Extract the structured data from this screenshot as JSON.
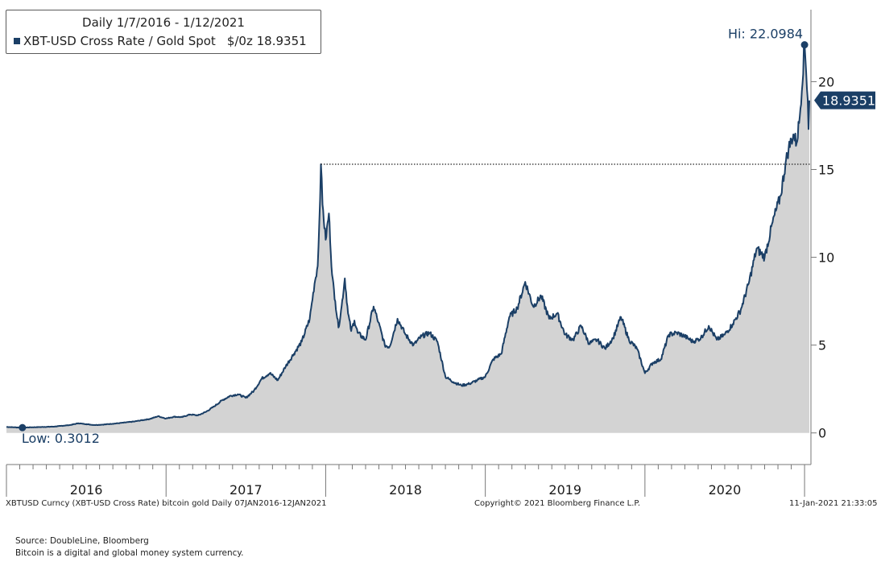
{
  "legend": {
    "title": "Daily 1/7/2016 - 1/12/2021",
    "series_label": "XBT-USD Cross Rate / Gold Spot",
    "unit_label": "$/0z",
    "last_value": "18.9351"
  },
  "colors": {
    "line": "#1b3f66",
    "fill": "#d3d3d3",
    "axis": "#777777",
    "label_bg": "#1b3f66",
    "label_text": "#ffffff"
  },
  "chart_data": {
    "type": "area",
    "title": "XBT-USD Cross Rate / Gold Spot",
    "ylabel": "$/0z",
    "xlabel": "",
    "xlim": [
      2016.0,
      2021.04
    ],
    "ylim": [
      -1.8,
      24.1
    ],
    "y_ticks": [
      0,
      5,
      10,
      15,
      20
    ],
    "y_tick_labels": [
      "0",
      "5",
      "10",
      "15",
      "20"
    ],
    "x_year_labels": [
      "2016",
      "2017",
      "2018",
      "2019",
      "2020"
    ],
    "x": [
      2016.0,
      2016.05,
      2016.1,
      2016.15,
      2016.2,
      2016.3,
      2016.4,
      2016.45,
      2016.5,
      2016.55,
      2016.6,
      2016.7,
      2016.8,
      2016.9,
      2016.95,
      2017.0,
      2017.05,
      2017.1,
      2017.15,
      2017.2,
      2017.25,
      2017.3,
      2017.35,
      2017.4,
      2017.45,
      2017.5,
      2017.55,
      2017.6,
      2017.65,
      2017.7,
      2017.75,
      2017.8,
      2017.85,
      2017.9,
      2017.93,
      2017.95,
      2017.96,
      2017.97,
      2017.98,
      2018.0,
      2018.02,
      2018.04,
      2018.06,
      2018.08,
      2018.1,
      2018.12,
      2018.14,
      2018.16,
      2018.18,
      2018.2,
      2018.25,
      2018.3,
      2018.33,
      2018.37,
      2018.4,
      2018.45,
      2018.5,
      2018.55,
      2018.6,
      2018.65,
      2018.7,
      2018.75,
      2018.8,
      2018.85,
      2018.9,
      2018.95,
      2019.0,
      2019.05,
      2019.1,
      2019.15,
      2019.2,
      2019.25,
      2019.3,
      2019.35,
      2019.4,
      2019.45,
      2019.5,
      2019.55,
      2019.6,
      2019.65,
      2019.7,
      2019.75,
      2019.8,
      2019.85,
      2019.9,
      2019.95,
      2020.0,
      2020.05,
      2020.1,
      2020.15,
      2020.2,
      2020.25,
      2020.3,
      2020.35,
      2020.4,
      2020.45,
      2020.5,
      2020.55,
      2020.6,
      2020.65,
      2020.7,
      2020.75,
      2020.8,
      2020.85,
      2020.88,
      2020.9,
      2020.93,
      2020.95,
      2020.97,
      2021.0,
      2021.01,
      2021.02,
      2021.025,
      2021.03
    ],
    "values": [
      0.34,
      0.32,
      0.3012,
      0.32,
      0.33,
      0.36,
      0.45,
      0.55,
      0.5,
      0.45,
      0.47,
      0.55,
      0.65,
      0.8,
      0.95,
      0.82,
      0.92,
      0.9,
      1.05,
      1.0,
      1.2,
      1.5,
      1.85,
      2.1,
      2.2,
      2.0,
      2.4,
      3.1,
      3.4,
      3.0,
      3.8,
      4.5,
      5.2,
      6.5,
      8.5,
      9.5,
      12.0,
      15.3,
      13.0,
      11.0,
      12.5,
      9.0,
      7.5,
      6.0,
      7.2,
      8.8,
      6.8,
      5.8,
      6.4,
      5.7,
      5.3,
      7.2,
      6.3,
      5.0,
      4.9,
      6.5,
      5.6,
      5.0,
      5.5,
      5.7,
      5.2,
      3.2,
      2.9,
      2.7,
      2.8,
      3.0,
      3.2,
      4.2,
      4.5,
      6.6,
      7.1,
      8.6,
      7.2,
      7.8,
      6.5,
      6.8,
      5.6,
      5.3,
      6.1,
      5.1,
      5.3,
      4.8,
      5.4,
      6.6,
      5.3,
      4.8,
      3.4,
      4.0,
      4.2,
      5.6,
      5.7,
      5.5,
      5.2,
      5.4,
      6.1,
      5.3,
      5.6,
      6.2,
      7.0,
      8.5,
      10.5,
      10.0,
      12.0,
      13.5,
      15.3,
      16.2,
      17.0,
      16.5,
      18.0,
      22.0984,
      20.5,
      19.0,
      17.3,
      18.9351
    ],
    "high": {
      "label": "Hi: 22.0984",
      "x": 2021.0,
      "y": 22.0984
    },
    "low": {
      "label": "Low: 0.3012",
      "x": 2016.1,
      "y": 0.3012
    },
    "last": {
      "label": "18.9351",
      "y": 18.9351
    },
    "reference_line": {
      "y": 15.3,
      "x_start": 2017.97,
      "x_end": 2021.04,
      "style": "dotted"
    }
  },
  "footer": {
    "left": "XBTUSD Curncy (XBT-USD Cross Rate) bitcoin gold  Daily 07JAN2016-12JAN2021",
    "center": "Copyright© 2021 Bloomberg Finance L.P.",
    "right": "11-Jan-2021 21:33:05"
  },
  "source": {
    "line1": "Source:  DoubleLine, Bloomberg",
    "line2": "Bitcoin is a digital and global money system currency."
  }
}
